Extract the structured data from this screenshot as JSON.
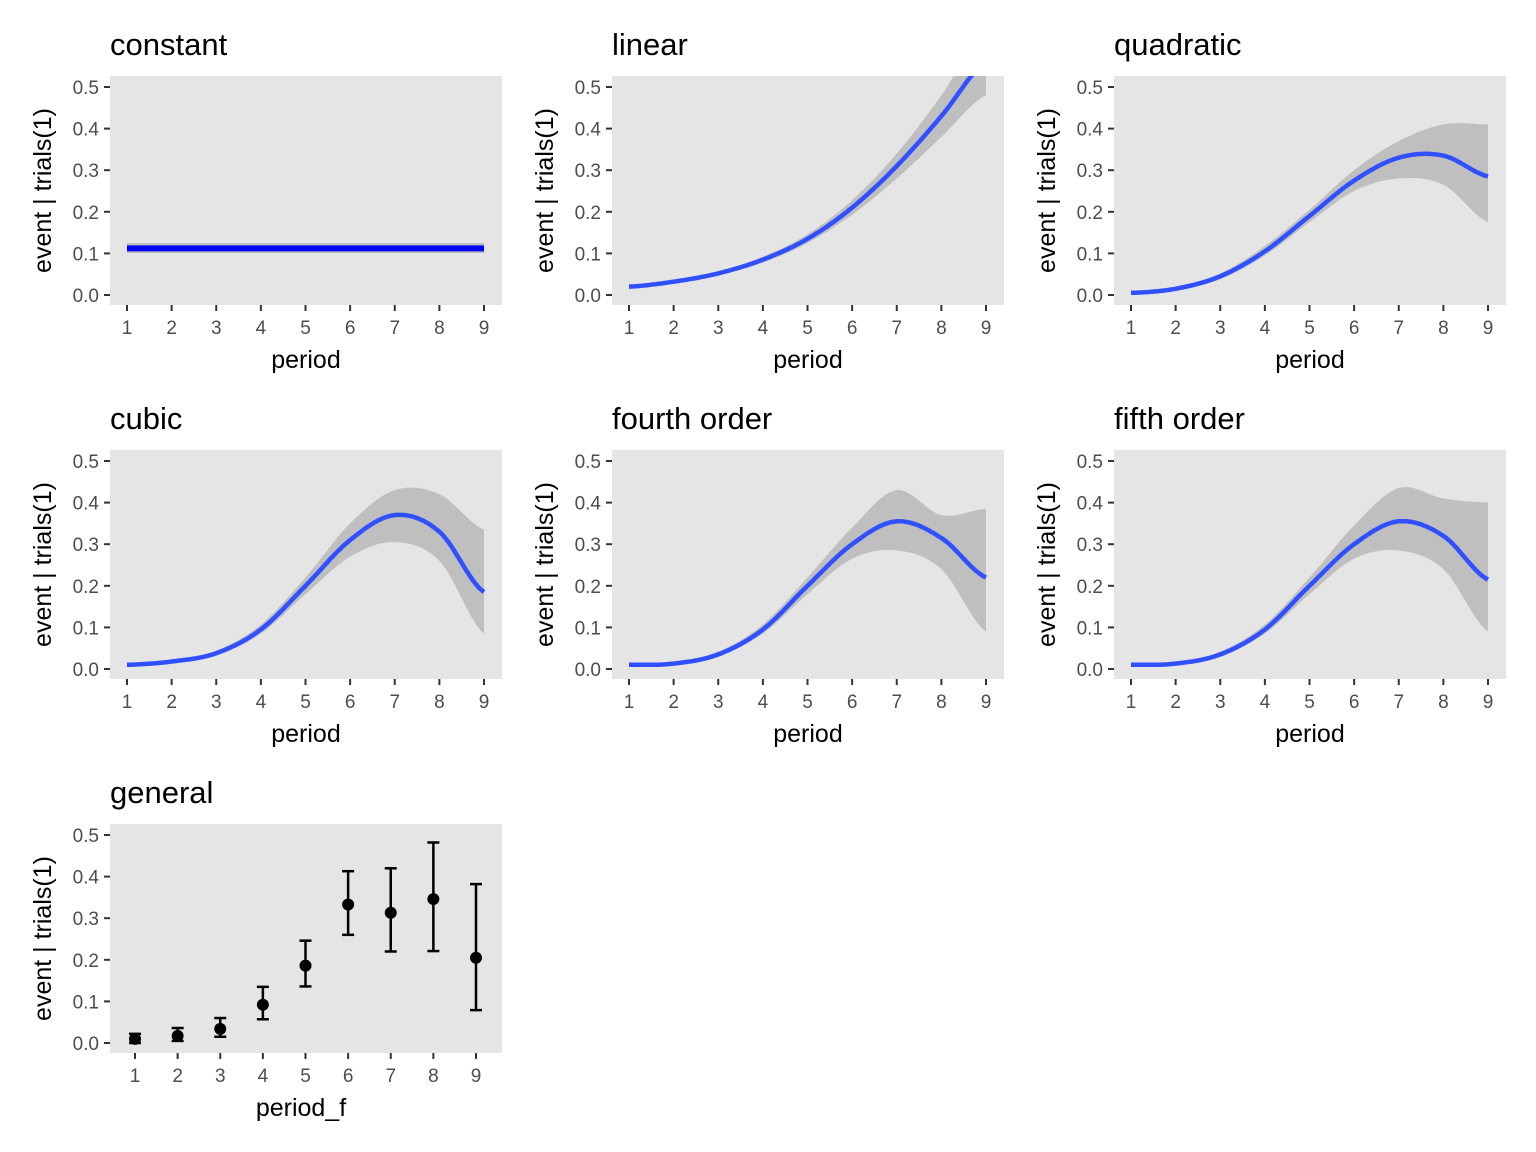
{
  "chart_data": [
    {
      "type": "line",
      "title": "constant",
      "xlabel": "period",
      "ylabel": "event | trials(1)",
      "xlim": [
        1,
        9
      ],
      "ylim": [
        0,
        0.5
      ],
      "x": [
        1,
        2,
        3,
        4,
        5,
        6,
        7,
        8,
        9
      ],
      "y": [
        0.112,
        0.112,
        0.112,
        0.112,
        0.112,
        0.112,
        0.112,
        0.112,
        0.112
      ],
      "lower": [
        0.101,
        0.101,
        0.101,
        0.101,
        0.101,
        0.101,
        0.101,
        0.101,
        0.101
      ],
      "upper": [
        0.125,
        0.125,
        0.125,
        0.125,
        0.125,
        0.125,
        0.125,
        0.125,
        0.125
      ]
    },
    {
      "type": "line",
      "title": "linear",
      "xlabel": "period",
      "ylabel": "event | trials(1)",
      "xlim": [
        1,
        9
      ],
      "ylim": [
        0,
        0.5
      ],
      "x": [
        1,
        2,
        3,
        4,
        5,
        6,
        7,
        8,
        9
      ],
      "y": [
        0.02,
        0.032,
        0.052,
        0.085,
        0.135,
        0.21,
        0.31,
        0.43,
        0.56
      ],
      "lower": [
        0.017,
        0.029,
        0.048,
        0.078,
        0.125,
        0.193,
        0.28,
        0.38,
        0.48
      ],
      "upper": [
        0.024,
        0.036,
        0.057,
        0.092,
        0.146,
        0.228,
        0.34,
        0.48,
        0.64
      ]
    },
    {
      "type": "line",
      "title": "quadratic",
      "xlabel": "period",
      "ylabel": "event | trials(1)",
      "xlim": [
        1,
        9
      ],
      "ylim": [
        0,
        0.5
      ],
      "x": [
        1,
        2,
        3,
        4,
        5,
        6,
        7,
        8,
        9
      ],
      "y": [
        0.005,
        0.015,
        0.045,
        0.105,
        0.19,
        0.275,
        0.33,
        0.335,
        0.285
      ],
      "lower": [
        0.003,
        0.012,
        0.038,
        0.095,
        0.175,
        0.25,
        0.28,
        0.265,
        0.175
      ],
      "upper": [
        0.008,
        0.02,
        0.052,
        0.118,
        0.205,
        0.3,
        0.37,
        0.41,
        0.41
      ]
    },
    {
      "type": "line",
      "title": "cubic",
      "xlabel": "period",
      "ylabel": "event | trials(1)",
      "xlim": [
        1,
        9
      ],
      "ylim": [
        0,
        0.5
      ],
      "x": [
        1,
        2,
        3,
        4,
        5,
        6,
        7,
        8,
        9
      ],
      "y": [
        0.01,
        0.018,
        0.038,
        0.095,
        0.2,
        0.31,
        0.37,
        0.33,
        0.185
      ],
      "lower": [
        0.008,
        0.015,
        0.033,
        0.085,
        0.18,
        0.27,
        0.305,
        0.26,
        0.085
      ],
      "upper": [
        0.013,
        0.022,
        0.044,
        0.107,
        0.22,
        0.35,
        0.43,
        0.42,
        0.335
      ]
    },
    {
      "type": "line",
      "title": "fourth order",
      "xlabel": "period",
      "ylabel": "event | trials(1)",
      "xlim": [
        1,
        9
      ],
      "ylim": [
        0,
        0.5
      ],
      "x": [
        1,
        2,
        3,
        4,
        5,
        6,
        7,
        8,
        9
      ],
      "y": [
        0.01,
        0.013,
        0.035,
        0.095,
        0.2,
        0.3,
        0.355,
        0.315,
        0.22
      ],
      "lower": [
        0.007,
        0.01,
        0.03,
        0.085,
        0.18,
        0.265,
        0.285,
        0.24,
        0.09
      ],
      "upper": [
        0.014,
        0.017,
        0.042,
        0.107,
        0.22,
        0.34,
        0.43,
        0.37,
        0.385
      ]
    },
    {
      "type": "line",
      "title": "fifth order",
      "xlabel": "period",
      "ylabel": "event | trials(1)",
      "xlim": [
        1,
        9
      ],
      "ylim": [
        0,
        0.5
      ],
      "x": [
        1,
        2,
        3,
        4,
        5,
        6,
        7,
        8,
        9
      ],
      "y": [
        0.01,
        0.013,
        0.035,
        0.095,
        0.2,
        0.3,
        0.355,
        0.32,
        0.215
      ],
      "lower": [
        0.007,
        0.01,
        0.03,
        0.085,
        0.18,
        0.265,
        0.285,
        0.24,
        0.09
      ],
      "upper": [
        0.014,
        0.017,
        0.042,
        0.107,
        0.22,
        0.345,
        0.435,
        0.41,
        0.4
      ]
    },
    {
      "type": "scatter",
      "title": "general",
      "xlabel": "period_f",
      "ylabel": "event | trials(1)",
      "ylim": [
        0,
        0.5
      ],
      "categories": [
        "1",
        "2",
        "3",
        "4",
        "5",
        "6",
        "7",
        "8",
        "9"
      ],
      "y": [
        0.01,
        0.017,
        0.034,
        0.092,
        0.186,
        0.333,
        0.313,
        0.346,
        0.205
      ],
      "lower": [
        0.0,
        0.005,
        0.015,
        0.057,
        0.136,
        0.26,
        0.22,
        0.221,
        0.079
      ],
      "upper": [
        0.022,
        0.036,
        0.06,
        0.135,
        0.246,
        0.413,
        0.42,
        0.482,
        0.382
      ]
    }
  ],
  "y_ticks": [
    "0.0",
    "0.1",
    "0.2",
    "0.3",
    "0.4",
    "0.5"
  ],
  "x_ticks": [
    "1",
    "2",
    "3",
    "4",
    "5",
    "6",
    "7",
    "8",
    "9"
  ],
  "colors": {
    "panel": "#e5e5e5",
    "ribbon": "#bfbfbf",
    "line": "#3050ff",
    "constant_line": "#0000ff",
    "points": "#000000"
  },
  "grid": false
}
